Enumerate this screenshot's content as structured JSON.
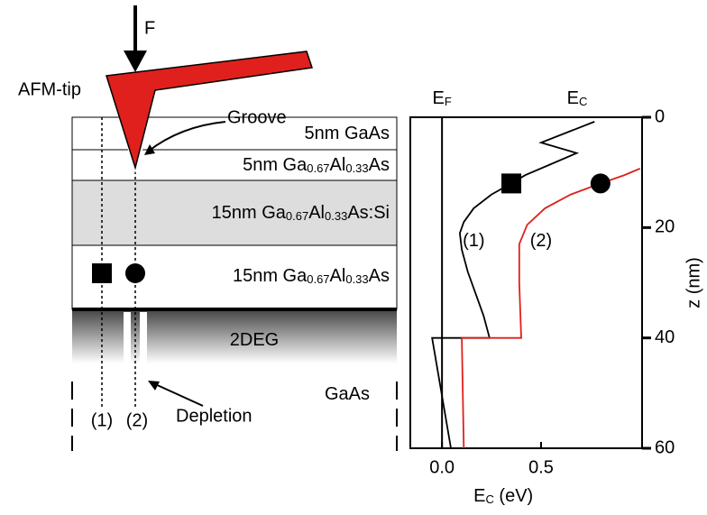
{
  "diagram": {
    "force": "F",
    "tip": "AFM-tip",
    "groove": "Groove",
    "layers": [
      {
        "parts": [
          "5nm GaAs"
        ]
      },
      {
        "parts": [
          "5nm Ga",
          "0.67",
          "Al",
          "0.33",
          "As"
        ]
      },
      {
        "parts": [
          "15nm Ga",
          "0.67",
          "Al",
          "0.33",
          "As:Si"
        ]
      },
      {
        "parts": [
          "15nm Ga",
          "0.67",
          "Al",
          "0.33",
          "As"
        ]
      },
      {
        "parts": [
          "2DEG"
        ]
      },
      {
        "parts": [
          "GaAs"
        ]
      }
    ],
    "paths": [
      "(1)",
      "(2)"
    ],
    "depletion": "Depletion"
  },
  "chart_data": {
    "type": "line",
    "xlabel": {
      "parts": [
        "E",
        "C",
        " (eV)"
      ]
    },
    "ylabel": "z (nm)",
    "xlim": [
      -0.16,
      1.01
    ],
    "ylim": [
      0,
      60
    ],
    "y_inverted": true,
    "y_axis_side": "right",
    "xticks": [
      {
        "value": 0,
        "label": "0.0"
      },
      0.5
    ],
    "yticks": [
      0,
      20,
      40,
      60
    ],
    "reference_line": {
      "x": 0,
      "parts": [
        "E",
        "F"
      ]
    },
    "top_label": {
      "parts": [
        "E",
        "C"
      ]
    },
    "series": [
      {
        "name": "(1)",
        "color": "#000000",
        "x": [
          0.77,
          0.5,
          0.68,
          0.55,
          0.42,
          0.35,
          0.25,
          0.16,
          0.11,
          0.09,
          0.1,
          0.13,
          0.17,
          0.21,
          0.24,
          -0.05,
          0.045
        ],
        "values": [
          0.8,
          4.6,
          6.5,
          8.5,
          10.5,
          12,
          14,
          16.5,
          19,
          21,
          24,
          28,
          32,
          36,
          40,
          40,
          60
        ]
      },
      {
        "name": "(2)",
        "color": "#e0201c",
        "x": [
          1.0,
          0.92,
          0.8,
          0.65,
          0.52,
          0.43,
          0.39,
          0.39,
          0.4,
          0.1,
          0.11
        ],
        "values": [
          9.3,
          10.5,
          12,
          14,
          16.5,
          19.5,
          23,
          30,
          40,
          40,
          60
        ]
      }
    ],
    "markers": [
      {
        "shape": "square",
        "x": 0.35,
        "y": 12
      },
      {
        "shape": "circle",
        "x": 0.8,
        "y": 12
      }
    ]
  }
}
